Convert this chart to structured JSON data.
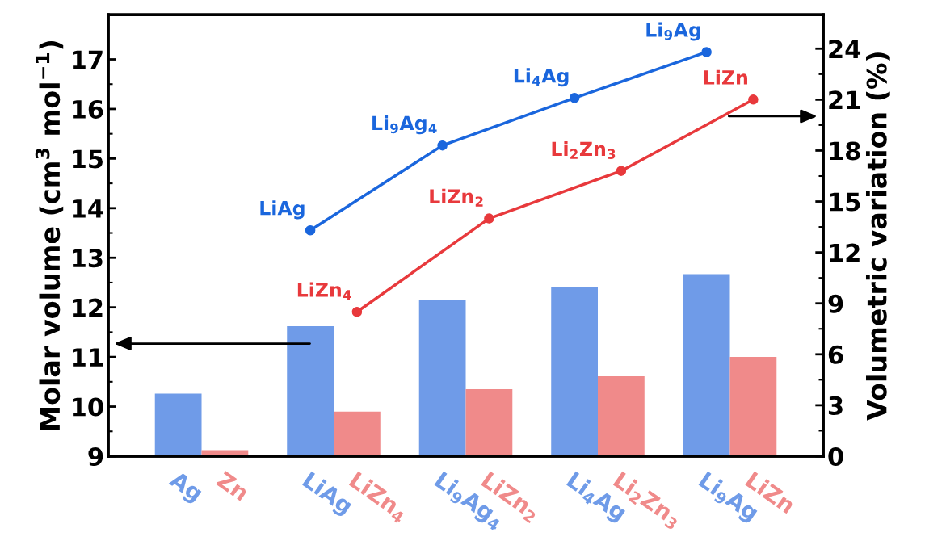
{
  "chart_data": {
    "type": "bar",
    "categories": [
      "Ag",
      "Zn",
      "LiAg",
      "LiZn$_{4}$",
      "Li$_{9}$Ag$_{4}$",
      "LiZn$_{2}$",
      "Li$_{4}$Ag",
      "Li$_{2}$Zn$_{3}$",
      "Li$_{9}$Ag",
      "LiZn"
    ],
    "ylabel": "Molar volume (cm$^{3}$ mol$^{−1}$)",
    "y2label": "Volumetric variation (%)",
    "ylim": [
      9,
      17.9
    ],
    "yticks": [
      9,
      10,
      11,
      12,
      13,
      14,
      15,
      16,
      17
    ],
    "y2lim": [
      0,
      26
    ],
    "y2ticks": [
      0,
      3,
      6,
      9,
      12,
      15,
      18,
      21,
      24
    ],
    "grid": false,
    "series": [
      {
        "color": "#6f9be8",
        "values": [
          10.26,
          null,
          11.62,
          null,
          12.15,
          null,
          12.4,
          null,
          12.67,
          null
        ]
      },
      {
        "color": "#f08a8a",
        "values": [
          null,
          9.12,
          null,
          9.9,
          null,
          10.35,
          null,
          10.61,
          null,
          11.0
        ]
      },
      {
        "type": "line",
        "axis": "y2",
        "color": "#1a66dd",
        "marker": "circle",
        "values": [
          null,
          null,
          13.3,
          null,
          18.3,
          null,
          21.1,
          null,
          23.8,
          null
        ]
      },
      {
        "type": "line",
        "axis": "y2",
        "color": "#e8393c",
        "marker": "circle",
        "values": [
          null,
          null,
          null,
          8.5,
          null,
          14.0,
          null,
          16.8,
          null,
          21.0
        ]
      }
    ],
    "annotations": [
      "LiAg",
      "Li$_{9}$Ag$_{4}$",
      "Li$_{4}$Ag",
      "Li$_{9}$Ag",
      "LiZn$_{4}$",
      "LiZn$_{2}$",
      "Li$_{2}$Zn$_{3}$",
      "LiZn"
    ]
  }
}
